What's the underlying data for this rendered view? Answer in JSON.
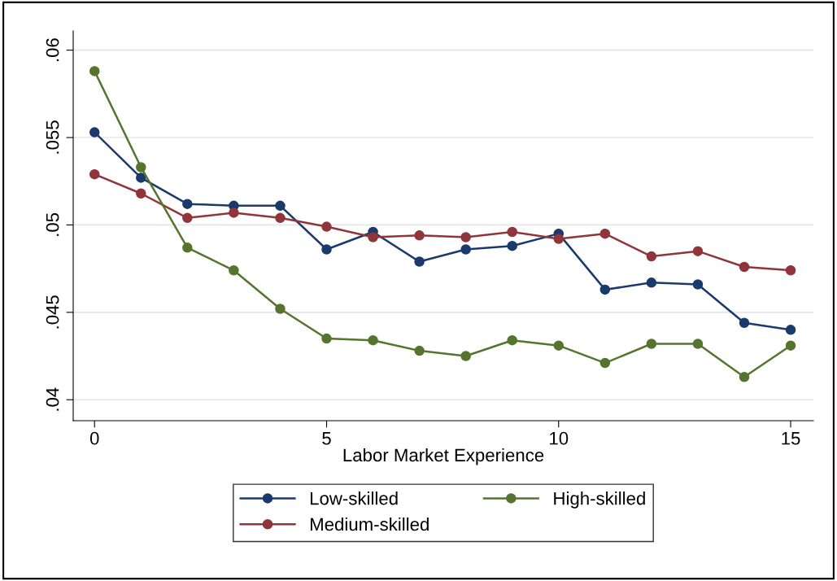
{
  "chart_data": {
    "type": "line",
    "xlabel": "Labor Market Experience",
    "x": [
      0,
      1,
      2,
      3,
      4,
      5,
      6,
      7,
      8,
      9,
      10,
      11,
      12,
      13,
      14,
      15
    ],
    "series": [
      {
        "name": "Low-skilled",
        "color": "#1a3a6b",
        "values": [
          0.0553,
          0.0527,
          0.0512,
          0.0511,
          0.0511,
          0.0486,
          0.0496,
          0.0479,
          0.0486,
          0.0488,
          0.0495,
          0.0463,
          0.0467,
          0.0466,
          0.0444,
          0.044
        ]
      },
      {
        "name": "Medium-skilled",
        "color": "#90353b",
        "values": [
          0.0529,
          0.0518,
          0.0504,
          0.0507,
          0.0504,
          0.0499,
          0.0493,
          0.0494,
          0.0493,
          0.0496,
          0.0492,
          0.0495,
          0.0482,
          0.0485,
          0.0476,
          0.0474
        ]
      },
      {
        "name": "High-skilled",
        "color": "#55752f",
        "values": [
          0.0588,
          0.0533,
          0.0487,
          0.0474,
          0.0452,
          0.0435,
          0.0434,
          0.0428,
          0.0425,
          0.0434,
          0.0431,
          0.0421,
          0.0432,
          0.0432,
          0.0413,
          0.0431
        ]
      }
    ],
    "xlim": [
      -0.46,
      15.49
    ],
    "xticks": [
      0,
      5,
      10,
      15
    ],
    "ylim": [
      0.0388,
      0.0611
    ],
    "yticks": [
      {
        "value": 0.04,
        "label": ".04"
      },
      {
        "value": 0.045,
        "label": ".045"
      },
      {
        "value": 0.05,
        "label": ".05"
      },
      {
        "value": 0.055,
        "label": ".055"
      },
      {
        "value": 0.06,
        "label": ".06"
      }
    ],
    "grid": "y",
    "legend": "bottom",
    "marker": "circle",
    "line_style": "solid"
  }
}
